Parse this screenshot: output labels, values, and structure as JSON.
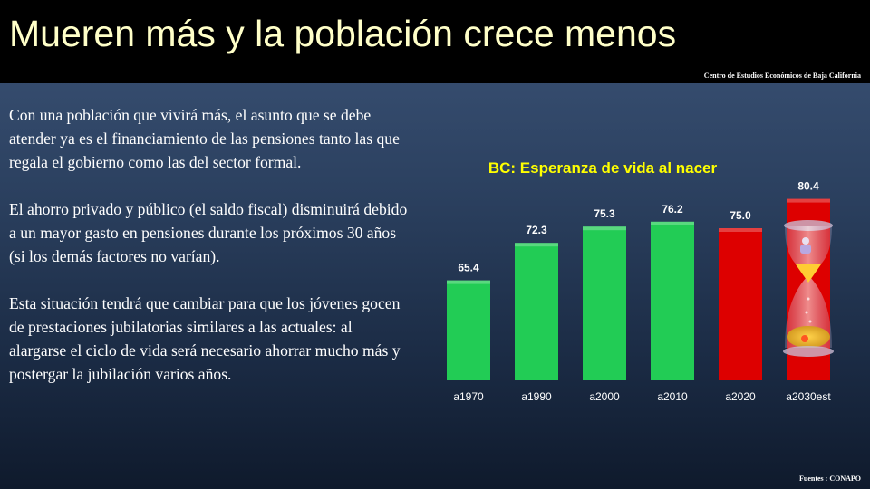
{
  "header": {
    "title": "Mueren más y la población crece menos",
    "source": "Centro de Estudios  Económicos  de  Baja California"
  },
  "body": {
    "paragraphs": [
      "Con una población que vivirá más, el asunto que se debe atender ya es el financiamiento de las pensiones tanto las que regala el gobierno como las del sector formal.",
      "El ahorro privado y público (el saldo fiscal) disminuirá debido a un mayor gasto en pensiones durante los próximos 30 años (si los demás factores no varían).",
      "Esta situación tendrá que cambiar para que los jóvenes gocen de prestaciones jubilatorias similares a las actuales: al alargarse el ciclo de vida será necesario ahorrar mucho más y postergar la jubilación varios años."
    ]
  },
  "chart_data": {
    "type": "bar",
    "title": "BC: Esperanza de vida al nacer",
    "categories": [
      "a1970",
      "a1990",
      "a2000",
      "a2010",
      "a2020",
      "a2030est"
    ],
    "values": [
      65.4,
      72.3,
      75.3,
      76.2,
      75.0,
      80.4
    ],
    "value_labels": [
      "65.4",
      "72.3",
      "75.3",
      "76.2",
      "75.0",
      "80.4"
    ],
    "bar_colors": [
      "#22cc55",
      "#22cc55",
      "#22cc55",
      "#22cc55",
      "#dd0000",
      "#dd0000"
    ],
    "ylim": [
      47,
      82
    ],
    "grid": false,
    "legend": "none",
    "xlabel": "",
    "ylabel": ""
  },
  "footer": {
    "source": "Fuentes :  CONAPO"
  },
  "colors": {
    "title": "#ffffc8",
    "chart_title": "#ffff00",
    "green_bar": "#22cc55",
    "red_bar": "#dd0000"
  }
}
